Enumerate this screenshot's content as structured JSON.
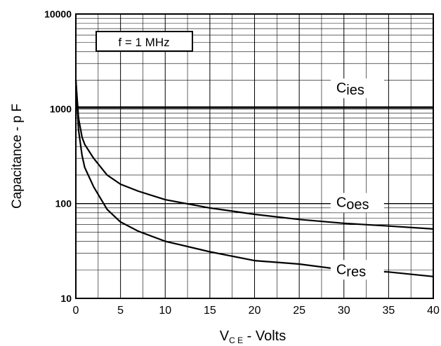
{
  "chart_data": {
    "type": "line",
    "title": "",
    "xlabel": {
      "main": "V",
      "subscript": "C E",
      "suffix": " - Volts"
    },
    "ylabel": "Capacitance - p F",
    "xlim": [
      0,
      40
    ],
    "ylim": [
      10,
      10000
    ],
    "y_scale": "log",
    "grid": true,
    "x_ticks": [
      "0",
      "5",
      "10",
      "15",
      "20",
      "25",
      "30",
      "35",
      "40"
    ],
    "y_ticks": [
      "10",
      "100",
      "1000",
      "10000"
    ],
    "annotation": "f = 1 MHz",
    "series": [
      {
        "name": "Cies",
        "label_main": "C",
        "label_sub": "ies",
        "x": [
          0,
          0.05,
          0.12,
          0.3,
          1,
          5,
          10,
          20,
          30,
          40
        ],
        "y": [
          2000,
          1400,
          1100,
          1040,
          1040,
          1040,
          1040,
          1040,
          1040,
          1040
        ]
      },
      {
        "name": "Coes",
        "label_main": "C",
        "label_sub": "oes",
        "x": [
          0,
          0.3,
          0.7,
          1,
          2,
          3.5,
          5,
          7,
          10,
          15,
          20,
          25,
          30,
          35,
          40
        ],
        "y": [
          2000,
          800,
          500,
          420,
          300,
          200,
          160,
          135,
          110,
          90,
          77,
          68,
          62,
          58,
          54
        ]
      },
      {
        "name": "Cres",
        "label_main": "C",
        "label_sub": "res",
        "x": [
          0,
          0.3,
          0.7,
          1,
          2,
          3.5,
          5,
          7,
          10,
          15,
          20,
          25,
          30,
          35,
          40
        ],
        "y": [
          2000,
          600,
          320,
          240,
          150,
          87,
          64,
          51,
          40,
          31,
          25,
          23,
          20,
          19,
          17
        ]
      }
    ]
  }
}
